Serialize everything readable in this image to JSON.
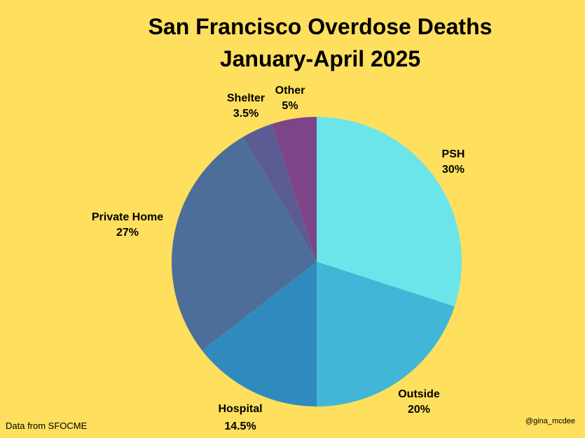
{
  "chart_data": {
    "type": "pie",
    "title": "San Francisco Overdose Deaths",
    "subtitle": "January-April 2025",
    "unit": "%",
    "slices": [
      {
        "label": "PSH",
        "value": 30,
        "display": "30%",
        "color": "#6BE5EA"
      },
      {
        "label": "Outside",
        "value": 20,
        "display": "20%",
        "color": "#42B6D6"
      },
      {
        "label": "Hospital",
        "value": 14.5,
        "display": "14.5%",
        "color": "#2F8BBD"
      },
      {
        "label": "Private Home",
        "value": 27,
        "display": "27%",
        "color": "#4D6E99"
      },
      {
        "label": "Shelter",
        "value": 3.5,
        "display": "3.5%",
        "color": "#5C5C94"
      },
      {
        "label": "Other",
        "value": 5,
        "display": "5%",
        "color": "#7E4488"
      }
    ]
  },
  "footer": {
    "source": "Data from SFOCME",
    "credit": "@gina_mcdee"
  }
}
